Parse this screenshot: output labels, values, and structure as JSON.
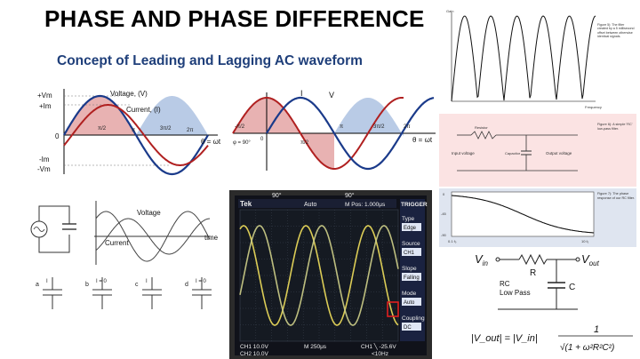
{
  "title": "PHASE AND PHASE DIFFERENCE",
  "subtitle": "Concept of Leading and Lagging AC waveform",
  "phasor1": {
    "labels": [
      "+Vm",
      "+Im",
      "0",
      "-Im",
      "-Vm"
    ],
    "voltage_label": "Voltage, (V)",
    "current_label": "Current, (I)",
    "x_ticks": [
      "π/2",
      "π",
      "3π/2",
      "2π"
    ],
    "axis": "θ = ωt"
  },
  "phasor2": {
    "i_label": "I",
    "v_label": "V",
    "x_ticks": [
      "-π/2",
      "π/2",
      "π",
      "3π/2",
      "2π"
    ],
    "axis": "θ = ωt",
    "phase_note": "φ = 90°",
    "zero": "0"
  },
  "lrc": {
    "voltage": "Voltage",
    "current": "Current",
    "time": "time",
    "caps": [
      "a",
      "b",
      "c",
      "d"
    ],
    "cap_notes": [
      "I",
      "I = 0",
      "I",
      "I = 0"
    ]
  },
  "scope": {
    "brand": "Tek",
    "marker1": "90°",
    "marker2": "90°",
    "mode": "Auto",
    "mpos": "M Pos: 1.000μs",
    "menu_title": "TRIGGER",
    "menu": [
      {
        "label": "Type",
        "value": "Edge"
      },
      {
        "label": "Source",
        "value": "CH1"
      },
      {
        "label": "Slope",
        "value": "Falling"
      },
      {
        "label": "Mode",
        "value": "Auto"
      },
      {
        "label": "Coupling",
        "value": "DC"
      }
    ],
    "ch1": "CH1  10.0V",
    "ch2": "CH2  10.0V",
    "time": "M 250μs",
    "trig": "CH1 ╲ -25.6V",
    "freq": "<10Hz"
  },
  "filter": {
    "top_caption": "Figure 5): The filter created by a 5 millisecond offset between otherwise identical signals.",
    "top_ylabel": "Gain",
    "top_xlabel": "Frequency",
    "mid_caption": "Figure 6): A simple 'RC' low-pass filter.",
    "resistor": "Resistor",
    "capacitor": "Capacitor",
    "input_voltage": "Input voltage",
    "output_voltage": "Output voltage",
    "bot_caption": "Figure 7): The phase response of our RC filter.",
    "bot_y": [
      "0",
      "-45",
      "-90"
    ],
    "bot_x_left": "0.1 f₀",
    "bot_x_right": "10 f₀"
  },
  "rc": {
    "vin": "V_in",
    "vout": "V_out",
    "r": "R",
    "c": "C",
    "desc1": "RC",
    "desc2": "Low Pass",
    "formula_lhs": "|V_out| = |V_in|",
    "numerator": "1",
    "denominator": "√(1 + ω²R²C²)"
  }
}
